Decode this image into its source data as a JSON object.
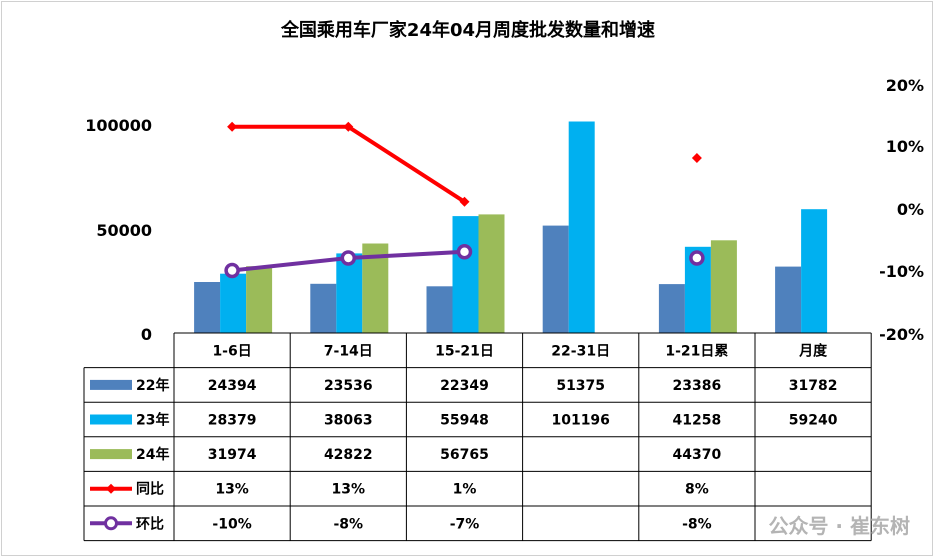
{
  "chart_data": {
    "type": "bar",
    "title": "全国乘用车厂家24年04月周度批发数量和增速",
    "categories": [
      "1-6日",
      "7-14日",
      "15-21日",
      "22-31日",
      "1-21日累",
      "月度"
    ],
    "series": [
      {
        "name": "22年",
        "values": [
          24394,
          23536,
          22349,
          51375,
          23386,
          31782
        ],
        "color": "#4f81bd"
      },
      {
        "name": "23年",
        "values": [
          28379,
          38063,
          55948,
          101196,
          41258,
          59240
        ],
        "color": "#00b0f0"
      },
      {
        "name": "24年",
        "values": [
          31974,
          42822,
          56765,
          null,
          44370,
          null
        ],
        "color": "#9bbb59"
      }
    ],
    "line_series": [
      {
        "name": "同比",
        "values": [
          13,
          13,
          1,
          null,
          8,
          null
        ],
        "display": [
          "13%",
          "13%",
          "1%",
          "",
          "8%",
          ""
        ],
        "color": "#ff0000",
        "marker": "diamond",
        "connect_until": 2
      },
      {
        "name": "环比",
        "values": [
          -10,
          -8,
          -7,
          null,
          -8,
          null
        ],
        "display": [
          "-10%",
          "-8%",
          "-7%",
          "",
          "-8%",
          ""
        ],
        "color": "#7030a0",
        "marker": "circle",
        "connect_until": 2
      }
    ],
    "y_left": {
      "ticks": [
        "0",
        "50000",
        "100000"
      ],
      "range": [
        0,
        110000
      ]
    },
    "y_right": {
      "ticks": [
        "-20%",
        "-10%",
        "0%",
        "10%",
        "20%"
      ],
      "range": [
        -20,
        20
      ]
    },
    "legend": "data-table"
  },
  "watermark": "公众号 · 崔东树"
}
